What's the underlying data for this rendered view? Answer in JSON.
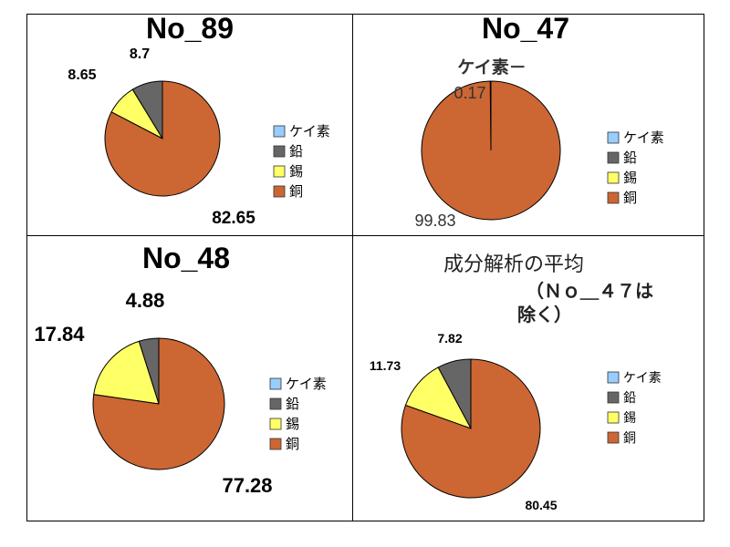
{
  "colors": {
    "keiso": "#99ccff",
    "namari": "#666666",
    "suzu": "#ffff66",
    "dou": "#cc6633",
    "border": "#000000"
  },
  "legend_labels": [
    "ケイ素",
    "鉛",
    "錫",
    "銅"
  ],
  "chart_data": [
    {
      "type": "pie",
      "title": "No_89",
      "categories": [
        "ケイ素",
        "鉛",
        "錫",
        "銅"
      ],
      "values": [
        0,
        8.7,
        8.65,
        82.65
      ],
      "value_labels": [
        "",
        "8.7",
        "8.65",
        "82.65"
      ],
      "legend": "right"
    },
    {
      "type": "pie",
      "title": "No_47",
      "categories": [
        "ケイ素",
        "鉛",
        "錫",
        "銅"
      ],
      "values": [
        0.17,
        0,
        0,
        99.83
      ],
      "value_labels": [
        "0.17",
        "",
        "",
        "99.83"
      ],
      "annotation": "ケイ素－",
      "legend": "right"
    },
    {
      "type": "pie",
      "title": "No_48",
      "categories": [
        "ケイ素",
        "鉛",
        "錫",
        "銅"
      ],
      "values": [
        0,
        4.88,
        17.84,
        77.28
      ],
      "value_labels": [
        "",
        "4.88",
        "17.84",
        "77.28"
      ],
      "legend": "right"
    },
    {
      "type": "pie",
      "title": "成分解析の平均",
      "subtitle_lines": [
        "（Ｎｏ＿４７は",
        "除く）"
      ],
      "categories": [
        "ケイ素",
        "鉛",
        "錫",
        "銅"
      ],
      "values": [
        0,
        7.82,
        11.73,
        80.45
      ],
      "value_labels": [
        "",
        "7.82",
        "11.73",
        "80.45"
      ],
      "legend": "right"
    }
  ]
}
